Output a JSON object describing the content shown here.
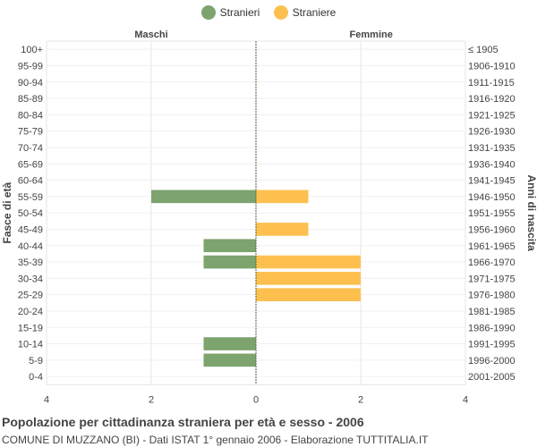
{
  "legend": {
    "male_label": "Stranieri",
    "female_label": "Straniere"
  },
  "colors": {
    "male": "#7da36f",
    "female": "#fdc04f",
    "grid": "#e6e6e6",
    "axis": "#556b2f"
  },
  "header": {
    "left": "Maschi",
    "right": "Femmine"
  },
  "caption": {
    "title": "Popolazione per cittadinanza straniera per età e sesso - 2006",
    "subtitle": "COMUNE DI MUZZANO (BI) - Dati ISTAT 1° gennaio 2006 - Elaborazione TUTTITALIA.IT"
  },
  "chart_data": {
    "type": "bar",
    "orientation": "horizontal-population-pyramid",
    "ylabel_left": "Fasce di età",
    "ylabel_right": "Anni di nascita",
    "xlim": [
      -4,
      4
    ],
    "xticks": [
      -4,
      -2,
      0,
      2,
      4
    ],
    "xtick_labels": [
      "4",
      "2",
      "0",
      "2",
      "4"
    ],
    "age_groups": [
      "100+",
      "95-99",
      "90-94",
      "85-89",
      "80-84",
      "75-79",
      "70-74",
      "65-69",
      "60-64",
      "55-59",
      "50-54",
      "45-49",
      "40-44",
      "35-39",
      "30-34",
      "25-29",
      "20-24",
      "15-19",
      "10-14",
      "5-9",
      "0-4"
    ],
    "birth_years": [
      "≤ 1905",
      "1906-1910",
      "1911-1915",
      "1916-1920",
      "1921-1925",
      "1926-1930",
      "1931-1935",
      "1936-1940",
      "1941-1945",
      "1946-1950",
      "1951-1955",
      "1956-1960",
      "1961-1965",
      "1966-1970",
      "1971-1975",
      "1976-1980",
      "1981-1985",
      "1986-1990",
      "1991-1995",
      "1996-2000",
      "2001-2005"
    ],
    "series": [
      {
        "name": "Stranieri",
        "values": [
          0,
          0,
          0,
          0,
          0,
          0,
          0,
          0,
          0,
          2,
          0,
          0,
          1,
          1,
          0,
          0,
          0,
          0,
          1,
          1,
          0
        ]
      },
      {
        "name": "Straniere",
        "values": [
          0,
          0,
          0,
          0,
          0,
          0,
          0,
          0,
          0,
          1,
          0,
          1,
          0,
          2,
          2,
          2,
          0,
          0,
          0,
          0,
          0
        ]
      }
    ]
  }
}
